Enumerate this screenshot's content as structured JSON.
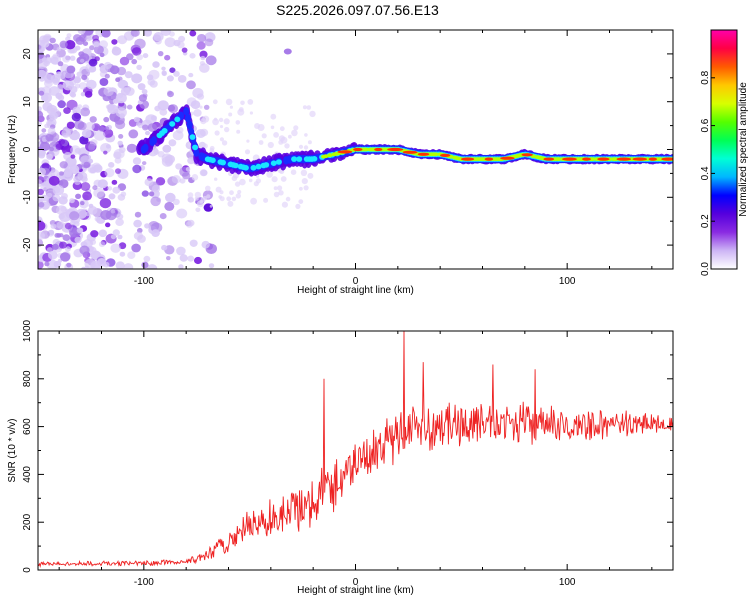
{
  "page_title": "S225.2026.097.07.56.E13",
  "chart_data": [
    {
      "type": "heatmap",
      "title": "S225.2026.097.07.56.E13",
      "xlabel": "Height of straight line (km)",
      "ylabel": "Frequency (Hz)",
      "xlim": [
        -150,
        150
      ],
      "ylim": [
        -25,
        25
      ],
      "xticks": [
        -100,
        0,
        100
      ],
      "xtick_labels": [
        "-100",
        "0",
        "100"
      ],
      "yticks": [
        -20,
        -10,
        0,
        10,
        20
      ],
      "ytick_labels": [
        "-20",
        "-10",
        "0",
        "10",
        "20"
      ],
      "colorbar": {
        "label": "Normalized spectral amplitude",
        "range": [
          0,
          1
        ],
        "ticks": [
          0.0,
          0.2,
          0.4,
          0.6,
          0.8
        ],
        "tick_labels": [
          "0.0",
          "0.2",
          "0.4",
          "0.6",
          "0.8"
        ],
        "colormap": [
          "#ffffff",
          "#cdb5f5",
          "#8a2be2",
          "#5500dd",
          "#0000ff",
          "#00b7ff",
          "#00ffd5",
          "#00ff55",
          "#55ff00",
          "#d8ff00",
          "#ffc800",
          "#ff5a00",
          "#ff0044",
          "#ff00aa"
        ]
      },
      "ridge": {
        "x": [
          -100,
          -90,
          -85,
          -80,
          -75,
          -70,
          -60,
          -50,
          -40,
          -30,
          -20,
          -10,
          0,
          10,
          20,
          30,
          40,
          50,
          60,
          70,
          80,
          90,
          100,
          110,
          120,
          130,
          150
        ],
        "y": [
          0,
          4,
          6,
          8,
          -1,
          -2,
          -3,
          -4,
          -3,
          -2,
          -2,
          -1,
          0,
          0,
          0,
          -1,
          -1,
          -2,
          -2,
          -2,
          -1,
          -2,
          -2,
          -2,
          -2,
          -2,
          -2
        ]
      }
    },
    {
      "type": "line",
      "xlabel": "Height of straight line (km)",
      "ylabel": "SNR (10 * v/v)",
      "xlim": [
        -150,
        150
      ],
      "ylim": [
        0,
        1000
      ],
      "xticks": [
        -100,
        0,
        100
      ],
      "xtick_labels": [
        "-100",
        "0",
        "100"
      ],
      "yticks": [
        0,
        200,
        400,
        600,
        800,
        1000
      ],
      "ytick_labels": [
        "0",
        "200",
        "400",
        "600",
        "800",
        "1000"
      ],
      "line_color": "#ee2222",
      "envelope": {
        "x": [
          -150,
          -100,
          -80,
          -70,
          -60,
          -50,
          -40,
          -30,
          -20,
          -10,
          0,
          10,
          20,
          30,
          50,
          70,
          100,
          150
        ],
        "mean": [
          25,
          28,
          35,
          60,
          120,
          180,
          220,
          240,
          300,
          360,
          450,
          510,
          570,
          600,
          610,
          620,
          600,
          620
        ],
        "spread": [
          10,
          12,
          15,
          30,
          60,
          80,
          100,
          120,
          120,
          140,
          110,
          120,
          130,
          120,
          110,
          100,
          80,
          50
        ]
      },
      "peaks": [
        {
          "x": -15,
          "y": 800
        },
        {
          "x": 23,
          "y": 1000
        },
        {
          "x": 32,
          "y": 870
        },
        {
          "x": 65,
          "y": 860
        },
        {
          "x": 85,
          "y": 840
        }
      ]
    }
  ]
}
